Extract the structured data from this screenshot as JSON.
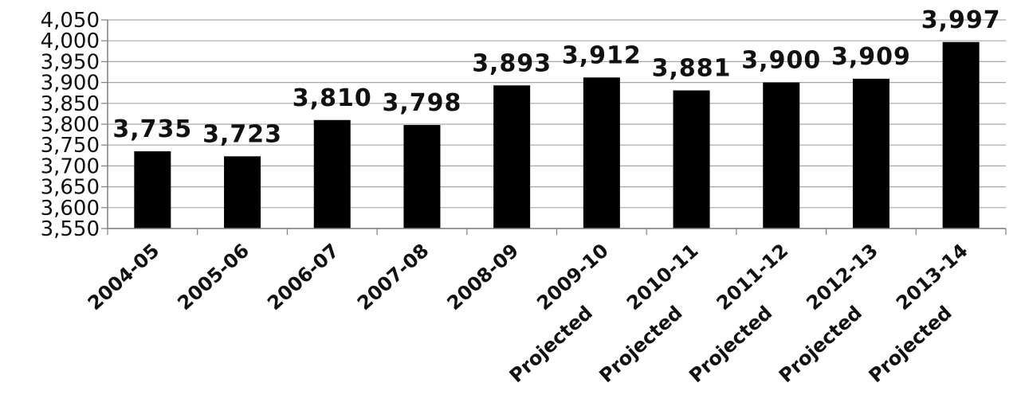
{
  "chart_data": {
    "type": "bar",
    "categories": [
      "2004-05",
      "2005-06",
      "2006-07",
      "2007-08",
      "2008-09",
      "2009-10",
      "2010-11",
      "2011-12",
      "2012-13",
      "2013-14"
    ],
    "category_notes": [
      "",
      "",
      "",
      "",
      "",
      "Projected",
      "Projected",
      "Projected",
      "Projected",
      "Projected"
    ],
    "values": [
      3735,
      3723,
      3810,
      3798,
      3893,
      3912,
      3881,
      3900,
      3909,
      3997
    ],
    "data_labels": [
      "3,735",
      "3,723",
      "3,810",
      "3,798",
      "3,893",
      "3,912",
      "3,881",
      "3,900",
      "3,909",
      "3,997"
    ],
    "title": "",
    "xlabel": "",
    "ylabel": "",
    "ylim": [
      3550,
      4050
    ],
    "yticks": [
      3550,
      3600,
      3650,
      3700,
      3750,
      3800,
      3850,
      3900,
      3950,
      4000,
      4050
    ],
    "ytick_labels": [
      "3,550",
      "3,600",
      "3,650",
      "3,700",
      "3,750",
      "3,800",
      "3,850",
      "3,900",
      "3,950",
      "4,000",
      "4,050"
    ],
    "grid": true,
    "legend": "none",
    "colors": {
      "bar": "#000000",
      "grid": "#a6a6a6",
      "axis": "#7f7f7f",
      "text": "#111111"
    }
  }
}
